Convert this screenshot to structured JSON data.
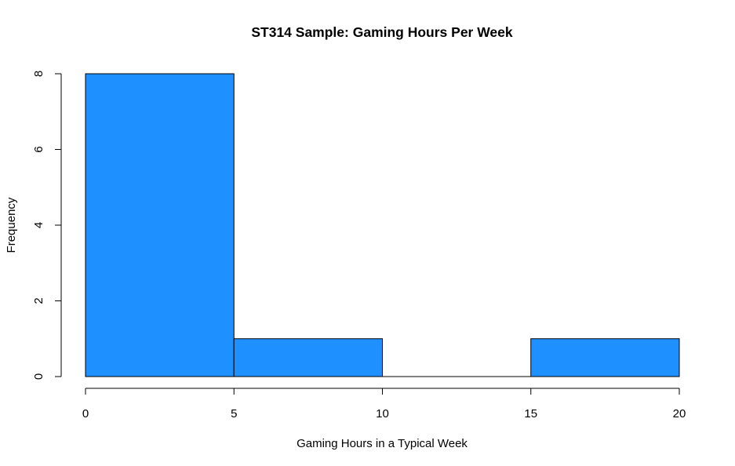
{
  "chart_data": {
    "type": "bar",
    "subtype": "histogram",
    "title": "ST314 Sample: Gaming Hours Per Week",
    "xlabel": "Gaming Hours in a Typical Week",
    "ylabel": "Frequency",
    "bins": [
      {
        "from": 0,
        "to": 5,
        "count": 8
      },
      {
        "from": 5,
        "to": 10,
        "count": 1
      },
      {
        "from": 10,
        "to": 15,
        "count": 0
      },
      {
        "from": 15,
        "to": 20,
        "count": 1
      }
    ],
    "xlim": [
      0,
      20
    ],
    "ylim": [
      0,
      8
    ],
    "x_ticks": [
      0,
      5,
      10,
      15,
      20
    ],
    "y_ticks": [
      0,
      2,
      4,
      6,
      8
    ],
    "bar_color": "#1E90FF",
    "border_color": "#000000",
    "grid": false,
    "legend": "none"
  }
}
